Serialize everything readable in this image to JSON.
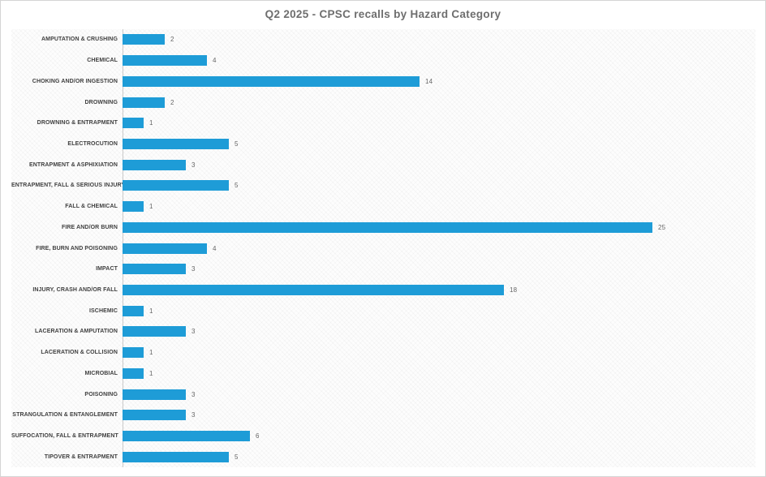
{
  "header": {
    "title": "Q2 2025 - CPSC recalls by Hazard Category"
  },
  "colors": {
    "bar": "#1E9CD7",
    "title_text": "#6E6E6E",
    "category_label_text": "#3F3F3F",
    "value_label_text": "#666666",
    "axis_line": "#C9C9C9",
    "canvas_border": "#D5D5D5",
    "background": "#FFFFFF"
  },
  "chart_data": {
    "type": "bar",
    "orientation": "horizontal",
    "title": "Q2 2025 - CPSC recalls by Hazard Category",
    "categories": [
      "AMPUTATION & CRUSHING",
      "CHEMICAL",
      "CHOKING AND/OR INGESTION",
      "DROWNING",
      "DROWNING & ENTRAPMENT",
      "ELECTROCUTION",
      "ENTRAPMENT & ASPHIXIATION",
      "ENTRAPMENT, FALL & SERIOUS INJURY",
      "FALL & CHEMICAL",
      "FIRE AND/OR BURN",
      "FIRE, BURN AND POISONING",
      "IMPACT",
      "INJURY, CRASH AND/OR FALL",
      "ISCHEMIC",
      "LACERATION & AMPUTATION",
      "LACERATION & COLLISION",
      "MICROBIAL",
      "POISONING",
      "STRANGULATION & ENTANGLEMENT",
      "SUFFOCATION, FALL & ENTRAPMENT",
      "TIPOVER & ENTRAPMENT"
    ],
    "values": [
      2,
      4,
      14,
      2,
      1,
      5,
      3,
      5,
      1,
      25,
      4,
      3,
      18,
      1,
      3,
      1,
      1,
      3,
      3,
      6,
      5
    ],
    "xlabel": "",
    "ylabel": "",
    "xlim": [
      0,
      25
    ],
    "grid": false,
    "legend": false,
    "x_axis_ticks_visible": false,
    "data_labels_visible": true
  }
}
